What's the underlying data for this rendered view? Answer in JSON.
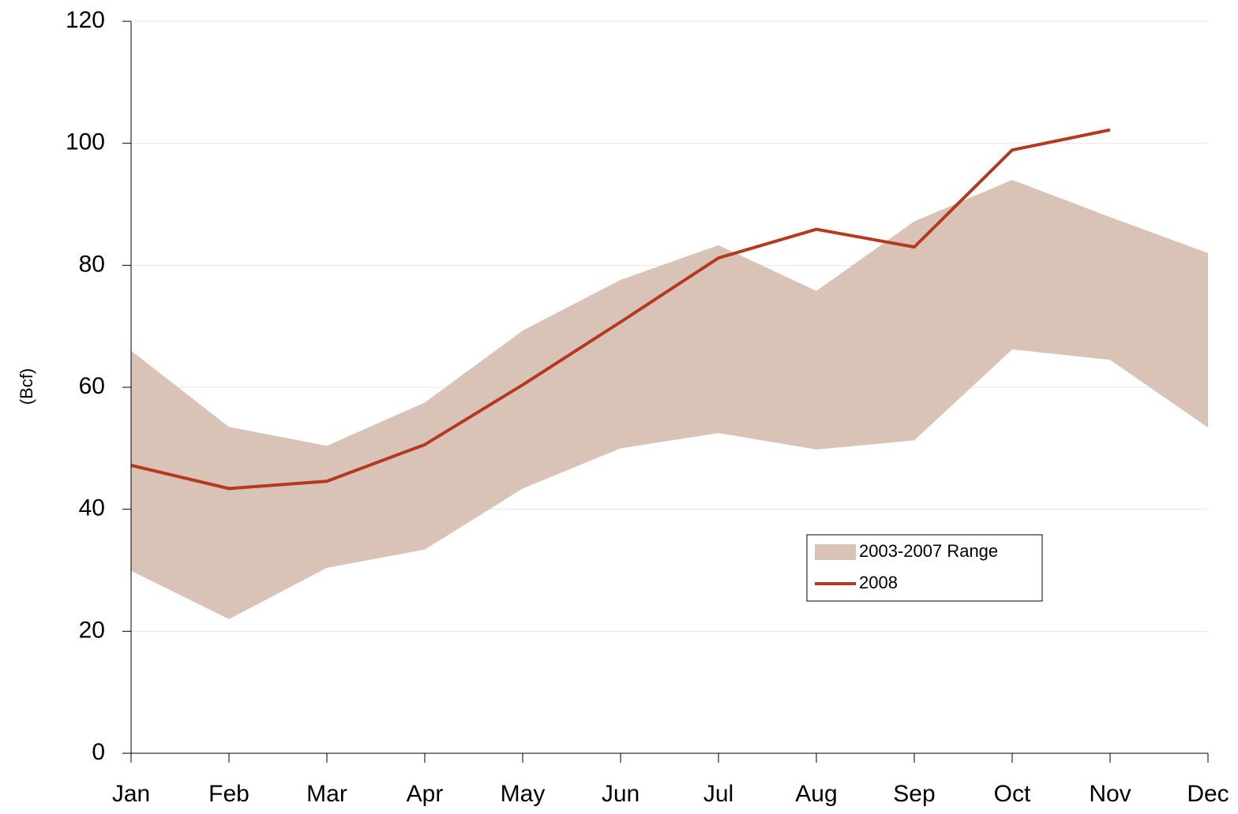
{
  "chart_data": {
    "type": "line",
    "ylabel": "(Bcf)",
    "categories": [
      "Jan",
      "Feb",
      "Mar",
      "Apr",
      "May",
      "Jun",
      "Jul",
      "Aug",
      "Sep",
      "Oct",
      "Nov",
      "Dec"
    ],
    "series": [
      {
        "name": "2003-2007 Range",
        "color": "#d9c3b7",
        "style": "band",
        "low": [
          29.9,
          22,
          30.4,
          33.4,
          43.4,
          50,
          52.5,
          49.8,
          51.3,
          66.2,
          64.5,
          53.4
        ],
        "high": [
          66,
          53.5,
          50.4,
          57.5,
          69.3,
          77.6,
          83.3,
          75.8,
          87.2,
          94,
          87.9,
          82
        ]
      },
      {
        "name": "2008",
        "color": "#b5391f",
        "style": "line",
        "values": [
          47.2,
          43.4,
          44.6,
          50.6,
          60.4,
          70.7,
          81.2,
          85.9,
          83,
          98.9,
          102.2,
          null
        ]
      }
    ],
    "ylim": [
      0,
      120
    ],
    "yticks": [
      0,
      20,
      40,
      60,
      80,
      100,
      120
    ],
    "grid": true
  }
}
